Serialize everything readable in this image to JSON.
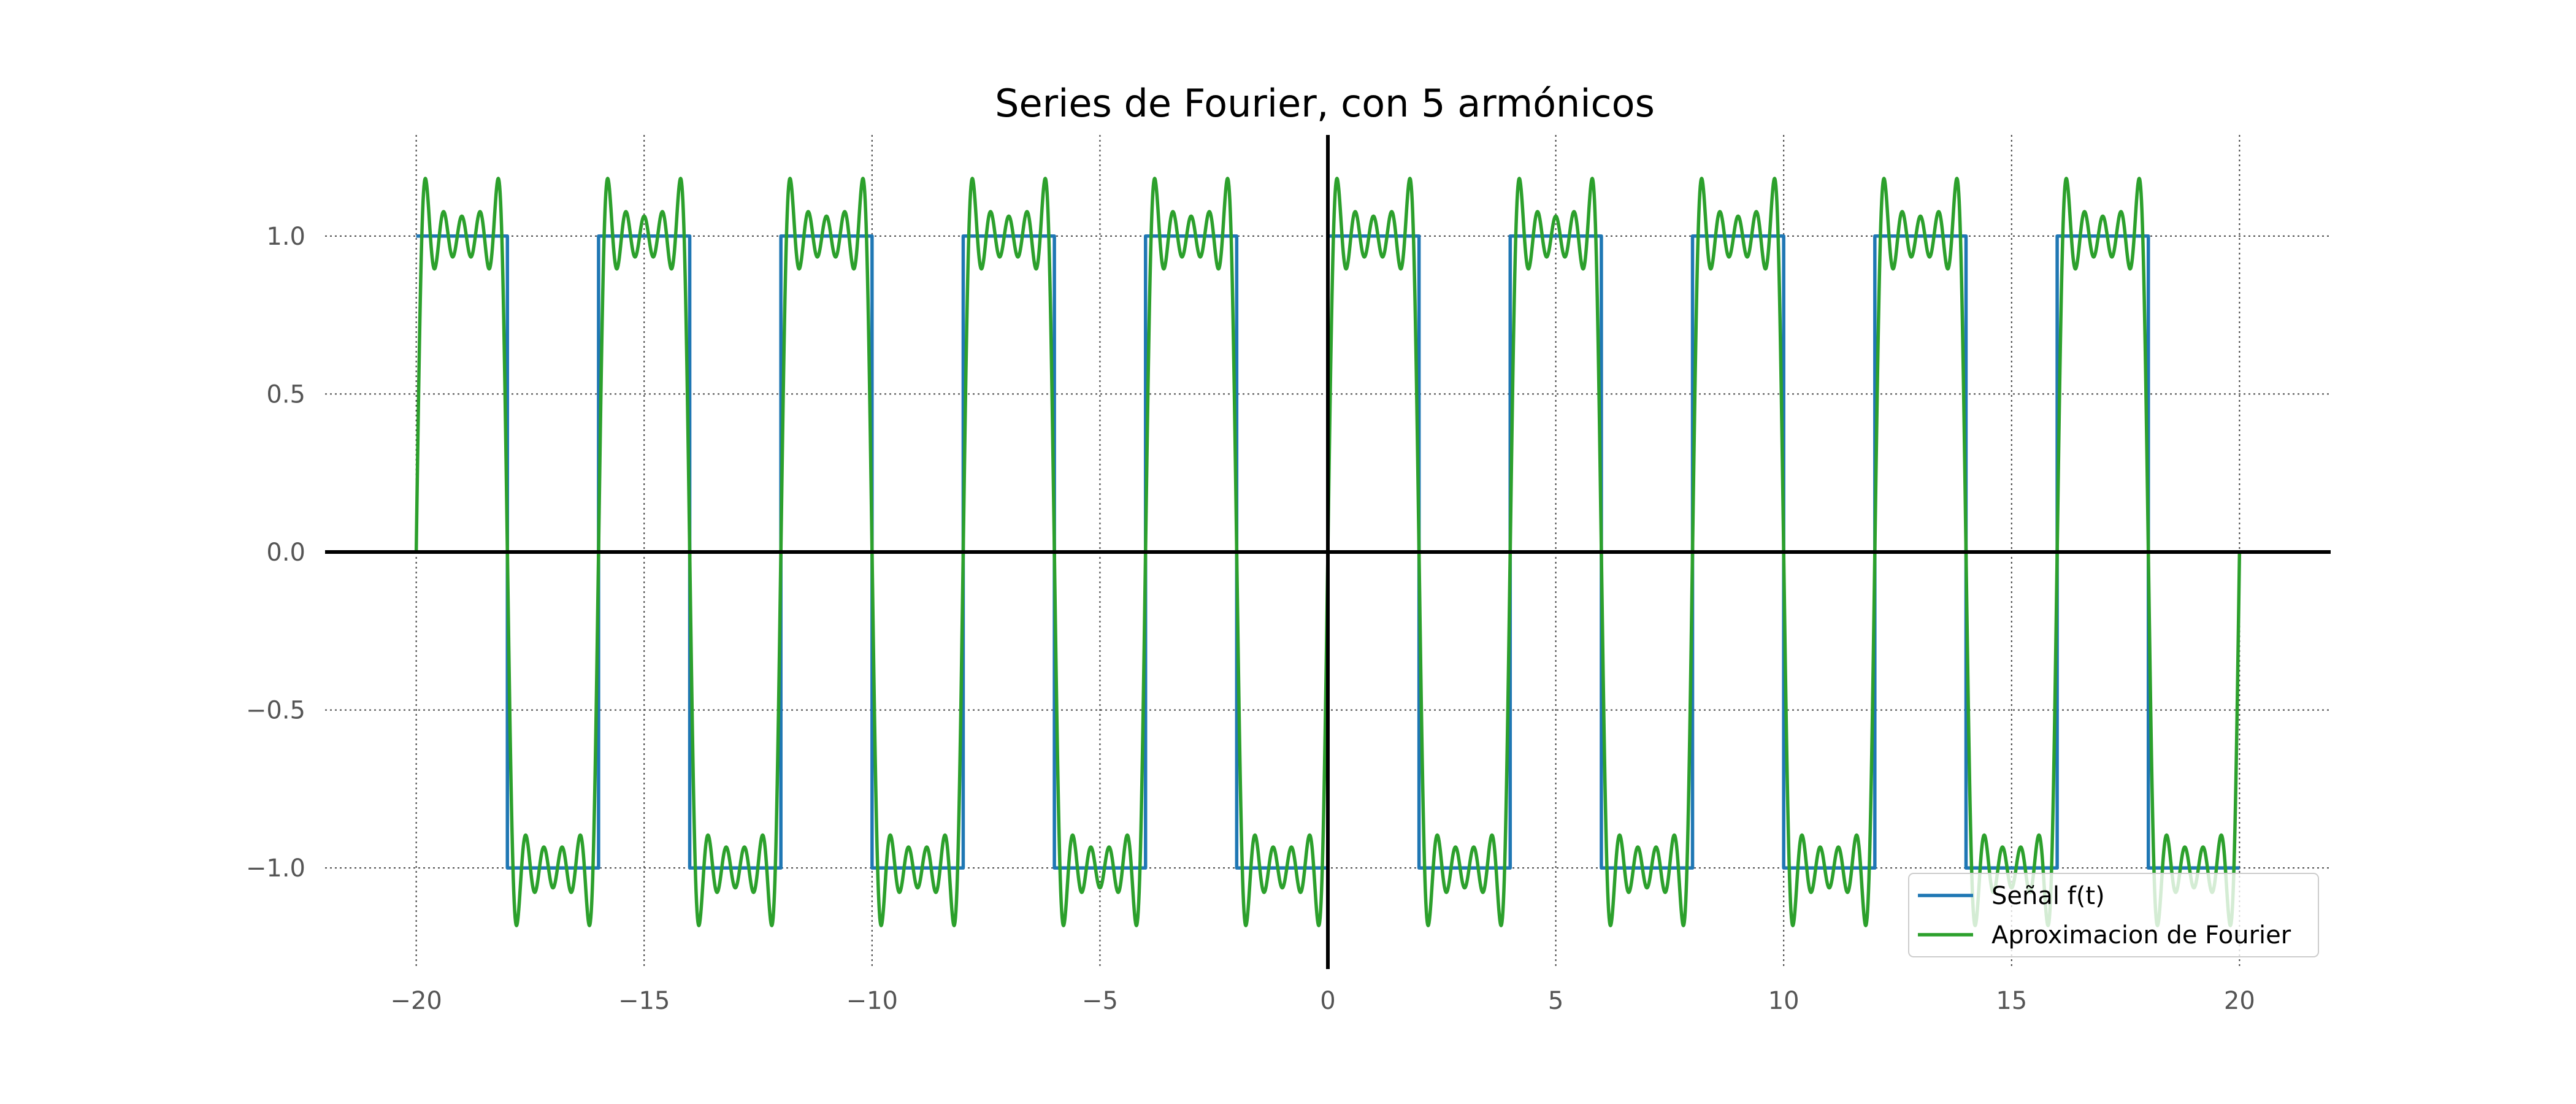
{
  "chart_data": {
    "type": "line",
    "title": "Series de Fourier, con 5 armónicos",
    "xlabel": "",
    "ylabel": "",
    "xlim": [
      -22,
      22
    ],
    "ylim": [
      -1.32,
      1.32
    ],
    "x_ticks": [
      -20,
      -15,
      -10,
      -5,
      0,
      5,
      10,
      15,
      20
    ],
    "x_tick_labels": [
      "−20",
      "−15",
      "−10",
      "−5",
      "0",
      "5",
      "10",
      "15",
      "20"
    ],
    "y_ticks": [
      1.0,
      0.5,
      0.0,
      -0.5,
      -1.0
    ],
    "y_tick_labels": [
      "1.0",
      "0.5",
      "0.0",
      "−0.5",
      "−1.0"
    ],
    "grid": true,
    "legend_position": "bottom-right",
    "period": 4,
    "harmonics": 5,
    "x_range": [
      -20,
      20
    ],
    "series": [
      {
        "name": "Señal f(t)",
        "kind": "square-wave",
        "color": "#1f77b4",
        "points": [
          [
            -20,
            1
          ],
          [
            -18,
            1
          ],
          [
            -18,
            -1
          ],
          [
            -16,
            -1
          ],
          [
            -16,
            1
          ],
          [
            -14,
            1
          ],
          [
            -14,
            -1
          ],
          [
            -12,
            -1
          ],
          [
            -12,
            1
          ],
          [
            -10,
            1
          ],
          [
            -10,
            -1
          ],
          [
            -8,
            -1
          ],
          [
            -8,
            1
          ],
          [
            -6,
            1
          ],
          [
            -6,
            -1
          ],
          [
            -4,
            -1
          ],
          [
            -4,
            1
          ],
          [
            -2,
            1
          ],
          [
            -2,
            -1
          ],
          [
            0,
            -1
          ],
          [
            0,
            1
          ],
          [
            2,
            1
          ],
          [
            2,
            -1
          ],
          [
            4,
            -1
          ],
          [
            4,
            1
          ],
          [
            6,
            1
          ],
          [
            6,
            -1
          ],
          [
            8,
            -1
          ],
          [
            8,
            1
          ],
          [
            10,
            1
          ],
          [
            10,
            -1
          ],
          [
            12,
            -1
          ],
          [
            12,
            1
          ],
          [
            14,
            1
          ],
          [
            14,
            -1
          ],
          [
            16,
            -1
          ],
          [
            16,
            1
          ],
          [
            18,
            1
          ],
          [
            18,
            -1
          ],
          [
            20,
            -1
          ]
        ]
      },
      {
        "name": "Aproximacion de Fourier",
        "kind": "fourier-approximation",
        "color": "#2ca02c",
        "odd_harmonics": [
          1,
          3,
          5,
          7,
          9
        ]
      }
    ]
  }
}
